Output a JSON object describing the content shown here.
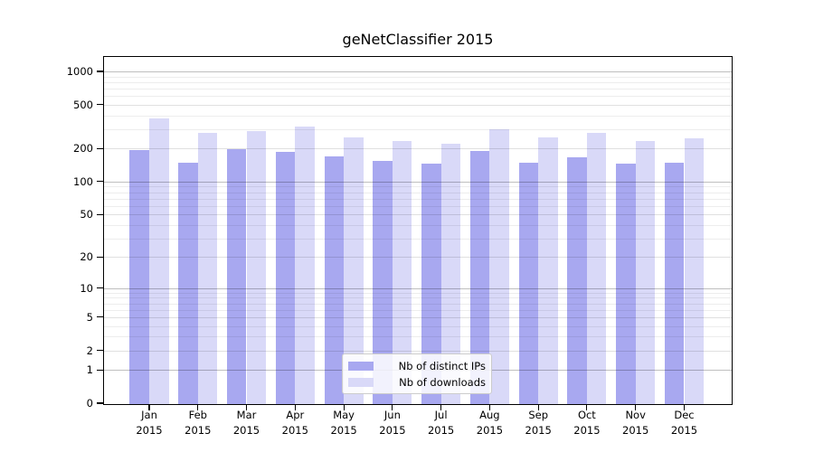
{
  "window": {
    "background": "#ffffff"
  },
  "chart_data": {
    "type": "bar",
    "title": "geNetClassifier 2015",
    "categories": [
      "Jan 2015",
      "Feb 2015",
      "Mar 2015",
      "Apr 2015",
      "May 2015",
      "Jun 2015",
      "Jul 2015",
      "Aug 2015",
      "Sep 2015",
      "Oct 2015",
      "Nov 2015",
      "Dec 2015"
    ],
    "x_tick_lines": [
      {
        "month": "Jan",
        "year": "2015"
      },
      {
        "month": "Feb",
        "year": "2015"
      },
      {
        "month": "Mar",
        "year": "2015"
      },
      {
        "month": "Apr",
        "year": "2015"
      },
      {
        "month": "May",
        "year": "2015"
      },
      {
        "month": "Jun",
        "year": "2015"
      },
      {
        "month": "Jul",
        "year": "2015"
      },
      {
        "month": "Aug",
        "year": "2015"
      },
      {
        "month": "Sep",
        "year": "2015"
      },
      {
        "month": "Oct",
        "year": "2015"
      },
      {
        "month": "Nov",
        "year": "2015"
      },
      {
        "month": "Dec",
        "year": "2015"
      }
    ],
    "series": [
      {
        "name": "Nb of distinct IPs",
        "color": "#a8a8f0",
        "values": [
          194,
          148,
          197,
          186,
          171,
          155,
          147,
          191,
          148,
          167,
          145,
          149
        ]
      },
      {
        "name": "Nb of downloads",
        "color": "#d9d9f8",
        "values": [
          376,
          277,
          290,
          315,
          254,
          235,
          221,
          300,
          254,
          280,
          235,
          247
        ]
      }
    ],
    "y_axis": {
      "scale": "log10(value+1)",
      "tick_values": [
        1000,
        500,
        200,
        100,
        50,
        20,
        10,
        5,
        2,
        1,
        0
      ],
      "tick_labels": [
        "1000",
        "500",
        "200",
        "100",
        "50",
        "20",
        "10",
        "5",
        "2",
        "1",
        "0"
      ],
      "minor_gridline_values": [
        3,
        4,
        6,
        7,
        8,
        9,
        30,
        40,
        60,
        70,
        80,
        90,
        300,
        400,
        600,
        700,
        800,
        900
      ]
    },
    "ylim": [
      0,
      1380
    ],
    "grid": {
      "power_line_color": "rgba(0,0,0,0.25)",
      "labeled_line_color": "rgba(0,0,0,0.12)",
      "minor_line_color": "rgba(0,0,0,0.07)"
    },
    "legend": {
      "position": "lower-center-inside"
    },
    "axis_color": "#000000"
  }
}
